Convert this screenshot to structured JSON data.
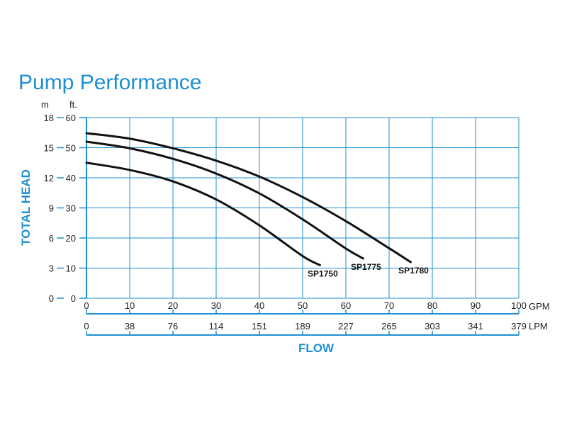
{
  "colors": {
    "accent": "#1e8fd0",
    "grid": "#1e8fd0",
    "curve": "#111111",
    "text": "#222222"
  },
  "chart_data": {
    "type": "line",
    "title": "Pump Performance",
    "xlabel": "FLOW",
    "ylabel": "TOTAL HEAD",
    "grid": true,
    "xlim": [
      0,
      100
    ],
    "ylim": [
      0,
      60
    ],
    "x_units_primary": "GPM",
    "x_units_secondary": "LPM",
    "y_units_left": "m",
    "y_units_right": "ft.",
    "x_ticks_gpm": [
      "0",
      "10",
      "20",
      "30",
      "40",
      "50",
      "60",
      "70",
      "80",
      "90",
      "100"
    ],
    "x_ticks_lpm": [
      "0",
      "38",
      "76",
      "114",
      "151",
      "189",
      "227",
      "265",
      "303",
      "341",
      "379"
    ],
    "y_ticks_ft": [
      "0",
      "10",
      "20",
      "30",
      "40",
      "50",
      "60"
    ],
    "y_ticks_m": [
      "0",
      "3",
      "6",
      "9",
      "12",
      "15",
      "18"
    ],
    "series": [
      {
        "name": "SP1750",
        "x": [
          0,
          10,
          20,
          30,
          40,
          50,
          54
        ],
        "y": [
          45,
          42.6,
          38.8,
          32.8,
          24.2,
          14.0,
          11.0
        ]
      },
      {
        "name": "SP1775",
        "x": [
          0,
          10,
          20,
          30,
          40,
          50,
          60,
          64
        ],
        "y": [
          52,
          49.8,
          46.3,
          41.4,
          34.8,
          26.2,
          16.5,
          13.2
        ]
      },
      {
        "name": "SP1780",
        "x": [
          0,
          10,
          20,
          30,
          40,
          50,
          60,
          70,
          75
        ],
        "y": [
          54.8,
          53.0,
          49.8,
          45.7,
          40.4,
          33.6,
          25.6,
          16.6,
          12.0
        ]
      }
    ]
  }
}
